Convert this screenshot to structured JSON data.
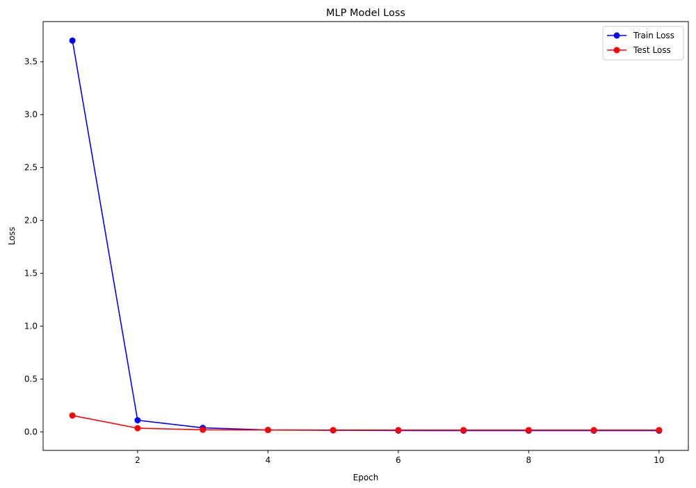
{
  "chart_data": {
    "type": "line",
    "title": "MLP Model Loss",
    "xlabel": "Epoch",
    "ylabel": "Loss",
    "x": [
      1,
      2,
      3,
      4,
      5,
      6,
      7,
      8,
      9,
      10
    ],
    "xlim": [
      0.55,
      10.45
    ],
    "ylim": [
      -0.175,
      3.88
    ],
    "xticks": [
      2,
      4,
      6,
      8,
      10
    ],
    "xtick_labels": [
      "2",
      "4",
      "6",
      "8",
      "10"
    ],
    "yticks": [
      0.0,
      0.5,
      1.0,
      1.5,
      2.0,
      2.5,
      3.0,
      3.5
    ],
    "ytick_labels": [
      "0.0",
      "0.5",
      "1.0",
      "1.5",
      "2.0",
      "2.5",
      "3.0",
      "3.5"
    ],
    "grid": false,
    "legend_position": "top-right",
    "series": [
      {
        "name": "Train Loss",
        "color": "#0000ff",
        "marker": "circle",
        "values": [
          3.7,
          0.11,
          0.038,
          0.018,
          0.015,
          0.013,
          0.012,
          0.012,
          0.012,
          0.012
        ]
      },
      {
        "name": "Test Loss",
        "color": "#ff0000",
        "marker": "circle",
        "values": [
          0.155,
          0.035,
          0.02,
          0.018,
          0.017,
          0.017,
          0.017,
          0.017,
          0.017,
          0.017
        ]
      }
    ]
  }
}
